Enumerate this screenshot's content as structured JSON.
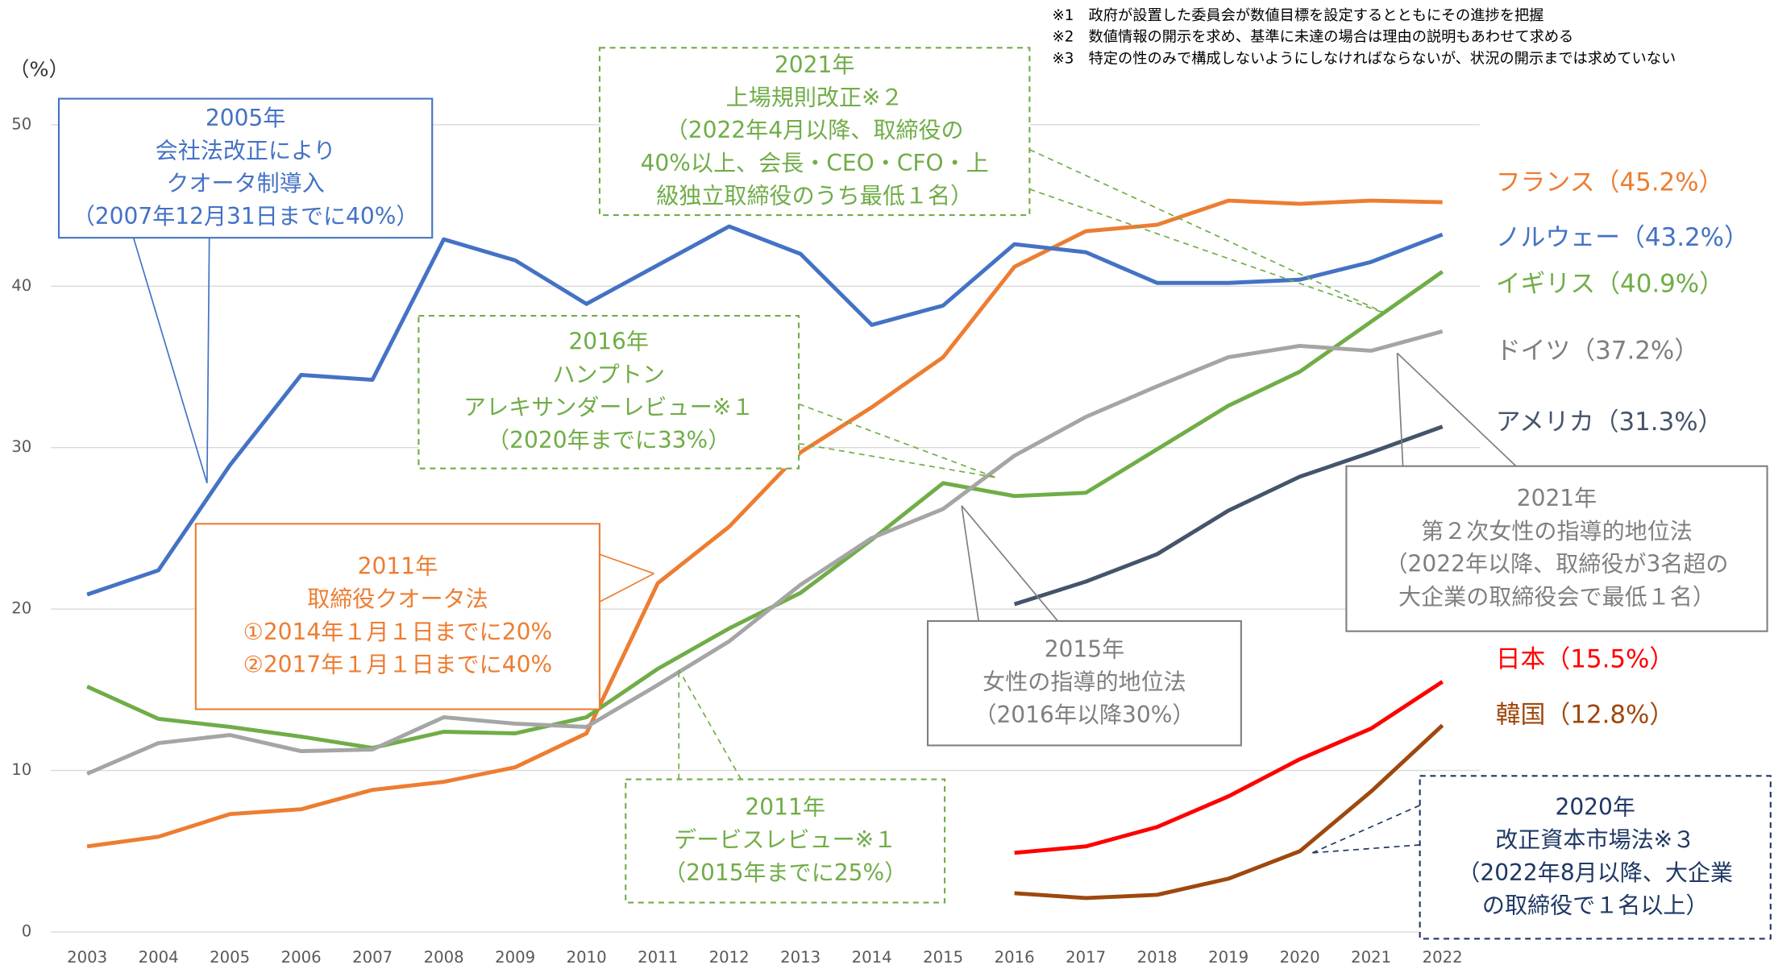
{
  "chart_data": {
    "type": "line",
    "y_label": "（%）",
    "categories": [
      "2003",
      "2004",
      "2005",
      "2006",
      "2007",
      "2008",
      "2009",
      "2010",
      "2011",
      "2012",
      "2013",
      "2014",
      "2015",
      "2016",
      "2017",
      "2018",
      "2019",
      "2020",
      "2021",
      "2022"
    ],
    "ylim": [
      0,
      50
    ],
    "yticks": [
      0,
      10,
      20,
      30,
      40,
      50
    ],
    "grid": true,
    "series": [
      {
        "name": "フランス（45.2%）",
        "color": "#ed7d31",
        "label_color": "#ed7d31",
        "values": [
          5.3,
          5.9,
          7.3,
          7.6,
          8.8,
          9.3,
          10.2,
          12.3,
          21.6,
          25.1,
          29.7,
          32.5,
          35.6,
          41.2,
          43.4,
          43.8,
          45.3,
          45.1,
          45.3,
          45.2
        ]
      },
      {
        "name": "ノルウェー（43.2%）",
        "color": "#4472c4",
        "label_color": "#4472c4",
        "values": [
          20.9,
          22.4,
          28.9,
          34.5,
          34.2,
          42.9,
          41.6,
          38.9,
          41.3,
          43.7,
          42.0,
          37.6,
          38.8,
          42.6,
          42.1,
          40.2,
          40.2,
          40.4,
          41.5,
          43.2
        ]
      },
      {
        "name": "イギリス（40.9%）",
        "color": "#70ad47",
        "label_color": "#70ad47",
        "values": [
          15.2,
          13.2,
          12.7,
          12.1,
          11.4,
          12.4,
          12.3,
          13.3,
          16.3,
          18.8,
          21.0,
          24.3,
          27.8,
          27.0,
          27.2,
          29.9,
          32.6,
          34.7,
          37.8,
          40.9
        ]
      },
      {
        "name": "ドイツ（37.2%）",
        "color": "#a5a5a5",
        "label_color": "#7f7f7f",
        "values": [
          9.8,
          11.7,
          12.2,
          11.2,
          11.3,
          13.3,
          12.9,
          12.7,
          15.3,
          18.0,
          21.5,
          24.4,
          26.2,
          29.5,
          31.9,
          33.8,
          35.6,
          36.3,
          36.0,
          37.2
        ]
      },
      {
        "name": "アメリカ（31.3%）",
        "color": "#44546a",
        "label_color": "#44546a",
        "values": [
          null,
          null,
          null,
          null,
          null,
          null,
          null,
          null,
          null,
          null,
          null,
          null,
          null,
          20.3,
          21.7,
          23.4,
          26.1,
          28.2,
          29.7,
          31.3
        ]
      },
      {
        "name": "日本（15.5%）",
        "color": "#ff0000",
        "label_color": "#ff0000",
        "values": [
          null,
          null,
          null,
          null,
          null,
          null,
          null,
          null,
          null,
          null,
          null,
          null,
          null,
          4.9,
          5.3,
          6.5,
          8.4,
          10.7,
          12.6,
          15.5
        ]
      },
      {
        "name": "韓国（12.8%）",
        "color": "#9e480e",
        "label_color": "#9e480e",
        "values": [
          null,
          null,
          null,
          null,
          null,
          null,
          null,
          null,
          null,
          null,
          null,
          null,
          null,
          2.4,
          2.1,
          2.3,
          3.3,
          5.0,
          8.7,
          12.8
        ]
      }
    ],
    "annotations": [
      {
        "color": "#4472c4",
        "style": "solid",
        "lines": [
          "2005年",
          "会社法改正により",
          "クオータ制導入",
          "（2007年12月31日までに40%）"
        ]
      },
      {
        "color": "#70ad47",
        "style": "dashed",
        "lines": [
          "2021年",
          "上場規則改正※２",
          "（2022年4月以降、取締役の",
          "40%以上、会長・CEO・CFO・上",
          "級独立取締役のうち最低１名）"
        ]
      },
      {
        "color": "#70ad47",
        "style": "dashed",
        "lines": [
          "2016年",
          "ハンプトン",
          "アレキサンダーレビュー※１",
          "（2020年までに33%）"
        ]
      },
      {
        "color": "#ed7d31",
        "style": "solid",
        "lines": [
          "2011年",
          "取締役クオータ法",
          "①2014年１月１日までに20%",
          "②2017年１月１日までに40%"
        ]
      },
      {
        "color": "#70ad47",
        "style": "dashed",
        "lines": [
          "2011年",
          "デービスレビュー※１",
          "（2015年までに25%）"
        ]
      },
      {
        "color": "#7f7f7f",
        "style": "solid",
        "lines": [
          "2015年",
          "女性の指導的地位法",
          "（2016年以降30%）"
        ]
      },
      {
        "color": "#7f7f7f",
        "style": "solid",
        "lines": [
          "2021年",
          "第２次女性の指導的地位法",
          "（2022年以降、取締役が3名超の",
          "大企業の取締役会で最低１名）"
        ]
      },
      {
        "color": "#1f3864",
        "style": "dashed",
        "lines": [
          "2020年",
          "改正資本市場法※３",
          "（2022年8月以降、大企業",
          "の取締役で１名以上）"
        ]
      }
    ],
    "footnotes": [
      "※1　政府が設置した委員会が数値目標を設定するとともにその進捗を把握",
      "※2　数値情報の開示を求め、基準に未達の場合は理由の説明もあわせて求める",
      "※3　特定の性のみで構成しないようにしなければならないが、状況の開示までは求めていない"
    ]
  }
}
